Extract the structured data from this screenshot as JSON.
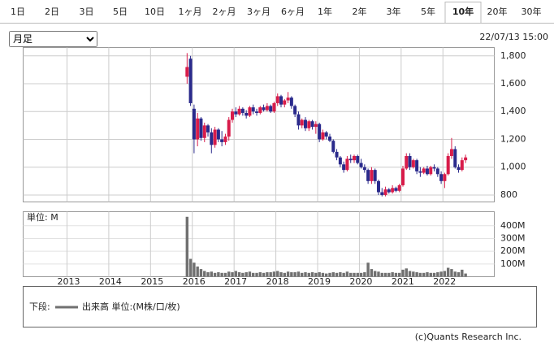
{
  "tabs": [
    "1日",
    "2日",
    "3日",
    "5日",
    "10日",
    "1ヶ月",
    "2ヶ月",
    "3ヶ月",
    "6ヶ月",
    "1年",
    "2年",
    "3年",
    "5年",
    "10年",
    "20年",
    "30年"
  ],
  "selected_tab": 13,
  "period_select": "月足",
  "timestamp": "22/07/13 15:00",
  "legend": {
    "label": "下段:",
    "text": "出来高 単位:(M株/口/枚)"
  },
  "copyright": "(c)Quants Research Inc.",
  "chart_data": [
    {
      "type": "candlestick",
      "x": [
        2015.875,
        2015.958,
        2016.042,
        2016.125,
        2016.208,
        2016.292,
        2016.375,
        2016.458,
        2016.542,
        2016.625,
        2016.708,
        2016.792,
        2016.875,
        2016.958,
        2017.042,
        2017.125,
        2017.208,
        2017.292,
        2017.375,
        2017.458,
        2017.542,
        2017.625,
        2017.708,
        2017.792,
        2017.875,
        2017.958,
        2018.042,
        2018.125,
        2018.208,
        2018.292,
        2018.375,
        2018.458,
        2018.542,
        2018.625,
        2018.708,
        2018.792,
        2018.875,
        2018.958,
        2019.042,
        2019.125,
        2019.208,
        2019.292,
        2019.375,
        2019.458,
        2019.542,
        2019.625,
        2019.708,
        2019.792,
        2019.875,
        2019.958,
        2020.042,
        2020.125,
        2020.208,
        2020.292,
        2020.375,
        2020.458,
        2020.542,
        2020.625,
        2020.708,
        2020.792,
        2020.875,
        2020.958,
        2021.042,
        2021.125,
        2021.208,
        2021.292,
        2021.375,
        2021.458,
        2021.542,
        2021.625,
        2021.708,
        2021.792,
        2021.875,
        2021.958,
        2022.042,
        2022.125,
        2022.208,
        2022.292,
        2022.375,
        2022.458,
        2022.542
      ],
      "open": [
        1650,
        1780,
        1420,
        1200,
        1350,
        1210,
        1300,
        1250,
        1160,
        1270,
        1200,
        1180,
        1220,
        1340,
        1400,
        1380,
        1420,
        1390,
        1370,
        1430,
        1400,
        1390,
        1430,
        1410,
        1440,
        1400,
        1460,
        1510,
        1450,
        1480,
        1500,
        1440,
        1380,
        1300,
        1340,
        1280,
        1330,
        1290,
        1310,
        1200,
        1250,
        1220,
        1190,
        1110,
        1070,
        1020,
        980,
        1060,
        1050,
        1080,
        1030,
        1000,
        980,
        900,
        980,
        900,
        820,
        800,
        840,
        820,
        850,
        830,
        870,
        990,
        1080,
        1000,
        1050,
        970,
        960,
        990,
        950,
        1000,
        990,
        950,
        900,
        950,
        1080,
        1130,
        1000,
        980,
        1050
      ],
      "high": [
        1820,
        1800,
        1450,
        1390,
        1360,
        1320,
        1310,
        1280,
        1290,
        1280,
        1260,
        1240,
        1360,
        1420,
        1430,
        1440,
        1430,
        1410,
        1440,
        1450,
        1420,
        1440,
        1450,
        1460,
        1450,
        1470,
        1530,
        1520,
        1490,
        1540,
        1510,
        1450,
        1400,
        1350,
        1360,
        1340,
        1340,
        1330,
        1320,
        1270,
        1260,
        1240,
        1200,
        1130,
        1080,
        1040,
        1080,
        1090,
        1090,
        1090,
        1060,
        1020,
        990,
        1000,
        990,
        910,
        850,
        860,
        850,
        870,
        860,
        880,
        1010,
        1100,
        1100,
        1060,
        1060,
        1000,
        1000,
        1010,
        1010,
        1020,
        1000,
        970,
        960,
        1100,
        1210,
        1150,
        1020,
        1070,
        1090
      ],
      "low": [
        1600,
        1440,
        1100,
        1150,
        1190,
        1180,
        1220,
        1100,
        1140,
        1180,
        1150,
        1160,
        1190,
        1320,
        1360,
        1370,
        1370,
        1350,
        1360,
        1380,
        1370,
        1380,
        1400,
        1400,
        1390,
        1390,
        1440,
        1430,
        1430,
        1460,
        1420,
        1360,
        1270,
        1280,
        1260,
        1260,
        1270,
        1240,
        1180,
        1190,
        1200,
        1180,
        1100,
        1050,
        1000,
        960,
        970,
        1030,
        1030,
        1020,
        990,
        960,
        880,
        880,
        880,
        800,
        790,
        790,
        810,
        810,
        820,
        820,
        860,
        980,
        980,
        990,
        950,
        930,
        950,
        940,
        940,
        970,
        930,
        880,
        850,
        940,
        1060,
        990,
        960,
        970,
        1030
      ],
      "close": [
        1720,
        1460,
        1200,
        1350,
        1210,
        1300,
        1250,
        1160,
        1270,
        1200,
        1180,
        1220,
        1340,
        1400,
        1380,
        1420,
        1390,
        1370,
        1430,
        1400,
        1390,
        1430,
        1410,
        1440,
        1400,
        1460,
        1510,
        1450,
        1480,
        1500,
        1440,
        1380,
        1300,
        1340,
        1280,
        1330,
        1290,
        1310,
        1200,
        1250,
        1220,
        1190,
        1110,
        1070,
        1020,
        980,
        1060,
        1050,
        1080,
        1030,
        1000,
        980,
        900,
        980,
        900,
        820,
        800,
        840,
        820,
        850,
        830,
        870,
        990,
        1080,
        1000,
        1050,
        970,
        960,
        990,
        950,
        1000,
        990,
        950,
        900,
        950,
        1080,
        1130,
        1000,
        980,
        1050,
        1070
      ],
      "up_color": "#d81c4a",
      "down_color": "#2a2a8c",
      "xlim": [
        2011.95,
        2023.23
      ],
      "xticks": [
        2013,
        2014,
        2015,
        2016,
        2017,
        2018,
        2019,
        2020,
        2021,
        2022
      ],
      "ylim": [
        750,
        1860
      ],
      "yticks": [
        800,
        {
          "value": 1000,
          "label": "1,000"
        },
        {
          "value": 1200,
          "label": "1,200"
        },
        {
          "value": 1400,
          "label": "1,400"
        },
        {
          "value": 1600,
          "label": "1,600"
        },
        {
          "value": 1800,
          "label": "1,800"
        }
      ],
      "grid": true
    },
    {
      "type": "bar",
      "unit_label": "単位: M",
      "x": [
        2015.875,
        2015.958,
        2016.042,
        2016.125,
        2016.208,
        2016.292,
        2016.375,
        2016.458,
        2016.542,
        2016.625,
        2016.708,
        2016.792,
        2016.875,
        2016.958,
        2017.042,
        2017.125,
        2017.208,
        2017.292,
        2017.375,
        2017.458,
        2017.542,
        2017.625,
        2017.708,
        2017.792,
        2017.875,
        2017.958,
        2018.042,
        2018.125,
        2018.208,
        2018.292,
        2018.375,
        2018.458,
        2018.542,
        2018.625,
        2018.708,
        2018.792,
        2018.875,
        2018.958,
        2019.042,
        2019.125,
        2019.208,
        2019.292,
        2019.375,
        2019.458,
        2019.542,
        2019.625,
        2019.708,
        2019.792,
        2019.875,
        2019.958,
        2020.042,
        2020.125,
        2020.208,
        2020.292,
        2020.375,
        2020.458,
        2020.542,
        2020.625,
        2020.708,
        2020.792,
        2020.875,
        2020.958,
        2021.042,
        2021.125,
        2021.208,
        2021.292,
        2021.375,
        2021.458,
        2021.542,
        2021.625,
        2021.708,
        2021.792,
        2021.875,
        2021.958,
        2022.042,
        2022.125,
        2022.208,
        2022.292,
        2022.375,
        2022.458,
        2022.542
      ],
      "values": [
        470,
        140,
        110,
        80,
        60,
        45,
        35,
        40,
        30,
        35,
        30,
        30,
        40,
        35,
        45,
        35,
        30,
        35,
        40,
        30,
        30,
        35,
        30,
        35,
        35,
        40,
        45,
        35,
        30,
        40,
        35,
        35,
        40,
        30,
        35,
        30,
        35,
        30,
        35,
        30,
        25,
        30,
        35,
        30,
        35,
        30,
        40,
        30,
        30,
        30,
        30,
        35,
        110,
        60,
        45,
        40,
        30,
        30,
        30,
        35,
        30,
        30,
        55,
        65,
        45,
        40,
        35,
        30,
        30,
        35,
        30,
        30,
        35,
        40,
        45,
        70,
        60,
        40,
        35,
        55,
        25
      ],
      "color": "#707070",
      "xlim": [
        2011.95,
        2023.23
      ],
      "xticks": [
        2013,
        2014,
        2015,
        2016,
        2017,
        2018,
        2019,
        2020,
        2021,
        2022
      ],
      "ylim": [
        0,
        510
      ],
      "yticks": [
        {
          "value": 100,
          "label": "100M"
        },
        {
          "value": 200,
          "label": "200M"
        },
        {
          "value": 300,
          "label": "300M"
        },
        {
          "value": 400,
          "label": "400M"
        }
      ],
      "grid": true
    }
  ]
}
